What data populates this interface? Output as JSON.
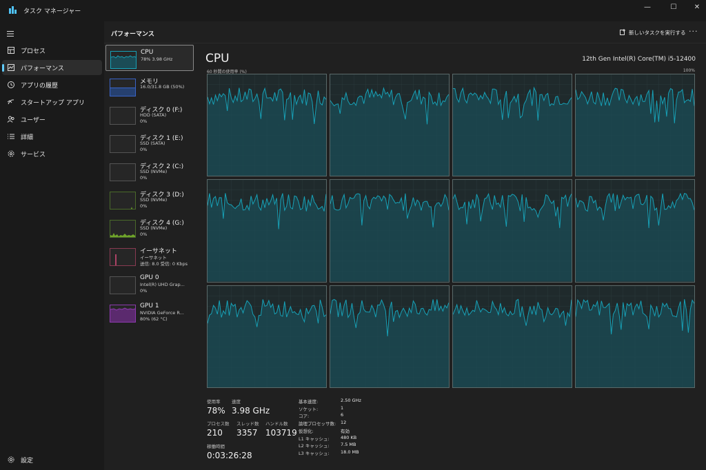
{
  "window": {
    "title": "タスク マネージャー",
    "minimize": "—",
    "maximize": "☐",
    "close": "✕"
  },
  "nav": {
    "items": [
      {
        "label": "プロセス",
        "icon": "processes-icon"
      },
      {
        "label": "パフォーマンス",
        "icon": "performance-icon"
      },
      {
        "label": "アプリの履歴",
        "icon": "history-icon"
      },
      {
        "label": "スタートアップ アプリ",
        "icon": "startup-icon"
      },
      {
        "label": "ユーザー",
        "icon": "users-icon"
      },
      {
        "label": "詳細",
        "icon": "details-icon"
      },
      {
        "label": "サービス",
        "icon": "services-icon"
      }
    ],
    "settings_label": "設定"
  },
  "header": {
    "title": "パフォーマンス",
    "new_task_label": "新しいタスクを実行する",
    "more": "···"
  },
  "devices": [
    {
      "name": "CPU",
      "sub1": "78%  3.98 GHz",
      "sub2": "",
      "sub3": "",
      "graph": "cpu"
    },
    {
      "name": "メモリ",
      "sub1": "16.0/31.8 GB (50%)",
      "sub2": "",
      "sub3": "",
      "graph": "mem"
    },
    {
      "name": "ディスク 0 (F:)",
      "sub1": "HDD (SATA)",
      "sub2": "0%",
      "sub3": "",
      "graph": "none"
    },
    {
      "name": "ディスク 1 (E:)",
      "sub1": "SSD (SATA)",
      "sub2": "0%",
      "sub3": "",
      "graph": "none"
    },
    {
      "name": "ディスク 2 (C:)",
      "sub1": "SSD (NVMe)",
      "sub2": "0%",
      "sub3": "",
      "graph": "none"
    },
    {
      "name": "ディスク 3 (D:)",
      "sub1": "SSD (NVMe)",
      "sub2": "0%",
      "sub3": "",
      "graph": "tinygreen"
    },
    {
      "name": "ディスク 4 (G:)",
      "sub1": "SSD (NVMe)",
      "sub2": "0%",
      "sub3": "",
      "graph": "green"
    },
    {
      "name": "イーサネット",
      "sub1": "イーサネット",
      "sub2": "送信: 8.0  受信: 0 Kbps",
      "sub3": "",
      "graph": "eth"
    },
    {
      "name": "GPU 0",
      "sub1": "Intel(R) UHD Grap...",
      "sub2": "0%",
      "sub3": "",
      "graph": "none"
    },
    {
      "name": "GPU 1",
      "sub1": "NVIDIA GeForce R...",
      "sub2": "80%  (62 °C)",
      "sub3": "",
      "graph": "gpu"
    }
  ],
  "cpu": {
    "title": "CPU",
    "model": "12th Gen Intel(R) Core(TM) i5-12400",
    "graph_label": "60 秒間の使用率 (%)",
    "graph_max": "100%",
    "logical_processors_graphs": 12
  },
  "stats": {
    "usage_label": "使用率",
    "usage_value": "78%",
    "speed_label": "速度",
    "speed_value": "3.98 GHz",
    "processes_label": "プロセス数",
    "processes_value": "210",
    "threads_label": "スレッド数",
    "threads_value": "3357",
    "handles_label": "ハンドル数",
    "handles_value": "103719",
    "uptime_label": "稼働時間",
    "uptime_value": "0:03:26:28"
  },
  "details": [
    {
      "k": "基本速度:",
      "v": "2.50 GHz"
    },
    {
      "k": "ソケット:",
      "v": "1"
    },
    {
      "k": "コア:",
      "v": "6"
    },
    {
      "k": "論理プロセッサ数:",
      "v": "12"
    },
    {
      "k": "仮想化:",
      "v": "有効"
    },
    {
      "k": "L1 キャッシュ:",
      "v": "480 KB"
    },
    {
      "k": "L2 キャッシュ:",
      "v": "7.5 MB"
    },
    {
      "k": "L3 キャッシュ:",
      "v": "18.0 MB"
    }
  ],
  "colors": {
    "accent": "#60cdff",
    "graph_line": "#17a2b8",
    "graph_fill": "#1b4c56",
    "mem": "#3a64c8",
    "gpu": "#8e3ab0",
    "disk_green": "#7cbb2c",
    "eth": "#d94b7a"
  }
}
